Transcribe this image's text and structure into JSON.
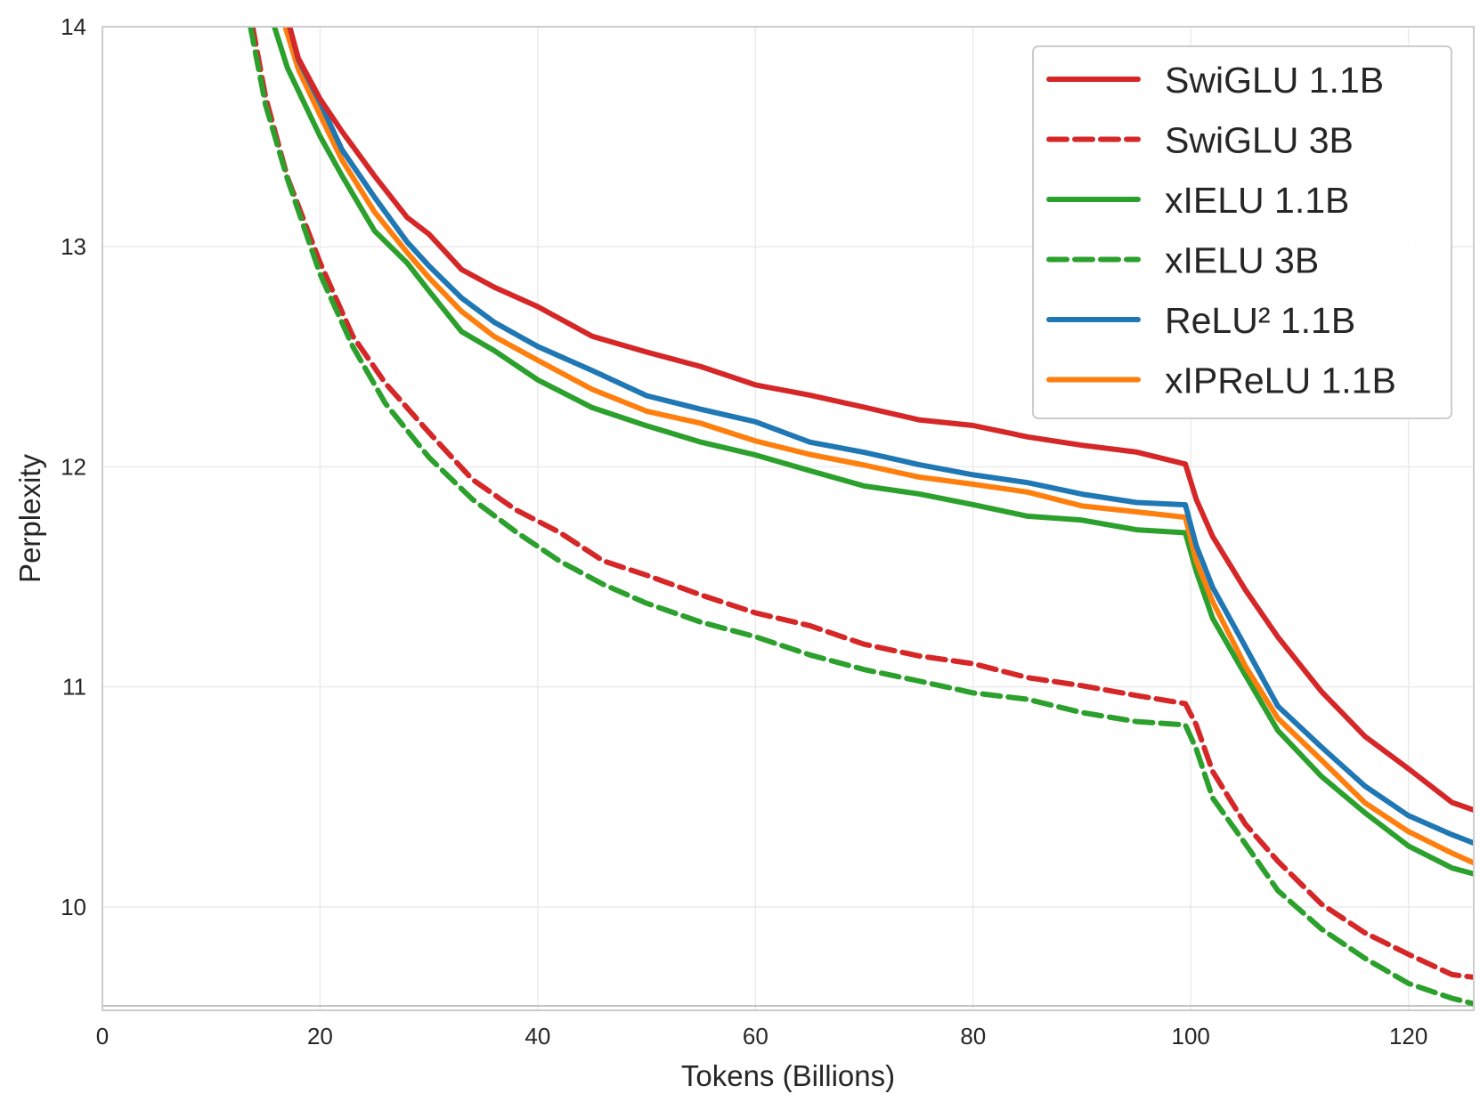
{
  "chart_data": {
    "type": "line",
    "title": "",
    "xlabel": "Tokens (Billions)",
    "ylabel": "Perplexity",
    "xlim": [
      0,
      126
    ],
    "ylim": [
      9.53,
      14
    ],
    "x_ticks": [
      0,
      20,
      40,
      60,
      80,
      100,
      120
    ],
    "y_ticks": [
      10,
      11,
      12,
      13,
      14
    ],
    "grid": true,
    "legend_position": "top-right",
    "baseline_hline": 9.55,
    "series": [
      {
        "name": "SwiGLU 1.1B",
        "color": "#d62728",
        "dash": "solid",
        "x": [
          17.2,
          18,
          20,
          22,
          25,
          28,
          30,
          33,
          36,
          40,
          45,
          50,
          55,
          60,
          65,
          70,
          75,
          80,
          85,
          90,
          95,
          99.5,
          100.5,
          102,
          105,
          108,
          112,
          116,
          120,
          124,
          126
        ],
        "y": [
          14,
          13.85,
          13.68,
          13.52,
          13.32,
          13.14,
          13.05,
          12.9,
          12.82,
          12.72,
          12.6,
          12.52,
          12.45,
          12.38,
          12.32,
          12.27,
          12.22,
          12.18,
          12.14,
          12.1,
          12.06,
          12.02,
          11.85,
          11.68,
          11.45,
          11.22,
          10.98,
          10.78,
          10.62,
          10.48,
          10.44
        ]
      },
      {
        "name": "SwiGLU 3B",
        "color": "#d62728",
        "dash": "dashed",
        "x": [
          13.8,
          15,
          17,
          20,
          23,
          26,
          30,
          34,
          38,
          42,
          46,
          50,
          55,
          60,
          65,
          70,
          75,
          80,
          85,
          90,
          95,
          99.5,
          100.5,
          102,
          105,
          108,
          112,
          116,
          120,
          124,
          126
        ],
        "y": [
          14,
          13.68,
          13.32,
          12.92,
          12.6,
          12.38,
          12.15,
          11.95,
          11.8,
          11.7,
          11.58,
          11.5,
          11.42,
          11.34,
          11.27,
          11.2,
          11.14,
          11.1,
          11.05,
          11.0,
          10.96,
          10.93,
          10.82,
          10.62,
          10.38,
          10.2,
          10.02,
          9.88,
          9.78,
          9.7,
          9.68
        ]
      },
      {
        "name": "xIELU 1.1B",
        "color": "#2ca02c",
        "dash": "solid",
        "x": [
          15.8,
          17,
          20,
          22,
          25,
          28,
          30,
          33,
          36,
          40,
          45,
          50,
          55,
          60,
          65,
          70,
          75,
          80,
          85,
          90,
          95,
          99.5,
          100.5,
          102,
          105,
          108,
          112,
          116,
          120,
          124,
          126
        ],
        "y": [
          14,
          13.82,
          13.5,
          13.32,
          13.08,
          12.92,
          12.8,
          12.62,
          12.52,
          12.4,
          12.27,
          12.18,
          12.12,
          12.05,
          11.98,
          11.92,
          11.87,
          11.83,
          11.78,
          11.75,
          11.72,
          11.7,
          11.52,
          11.32,
          11.05,
          10.8,
          10.6,
          10.42,
          10.28,
          10.18,
          10.15
        ]
      },
      {
        "name": "xIELU 3B",
        "color": "#2ca02c",
        "dash": "dashed",
        "x": [
          13.6,
          15,
          17,
          20,
          23,
          26,
          30,
          34,
          38,
          42,
          46,
          50,
          55,
          60,
          65,
          70,
          75,
          80,
          85,
          90,
          95,
          99.5,
          100.5,
          102,
          105,
          108,
          112,
          116,
          120,
          124,
          126
        ],
        "y": [
          14,
          13.65,
          13.3,
          12.88,
          12.55,
          12.28,
          12.05,
          11.85,
          11.7,
          11.58,
          11.46,
          11.38,
          11.3,
          11.22,
          11.15,
          11.08,
          11.02,
          10.98,
          10.94,
          10.88,
          10.85,
          10.82,
          10.72,
          10.5,
          10.28,
          10.08,
          9.9,
          9.76,
          9.66,
          9.58,
          9.56
        ]
      },
      {
        "name": "ReLU² 1.1B",
        "color": "#1f77b4",
        "dash": "solid",
        "x": [
          17.2,
          18,
          20,
          22,
          25,
          28,
          30,
          33,
          36,
          40,
          45,
          50,
          55,
          60,
          65,
          70,
          75,
          80,
          85,
          90,
          95,
          99.5,
          100.5,
          102,
          105,
          108,
          112,
          116,
          120,
          124,
          126
        ],
        "y": [
          14,
          13.85,
          13.65,
          13.45,
          13.22,
          13.02,
          12.92,
          12.76,
          12.66,
          12.55,
          12.43,
          12.33,
          12.26,
          12.2,
          12.12,
          12.06,
          12.01,
          11.97,
          11.92,
          11.88,
          11.84,
          11.82,
          11.65,
          11.45,
          11.18,
          10.92,
          10.72,
          10.55,
          10.42,
          10.32,
          10.29
        ]
      },
      {
        "name": "xIPReLU 1.1B",
        "color": "#ff7f0e",
        "dash": "solid",
        "x": [
          16.8,
          18,
          20,
          22,
          25,
          28,
          30,
          33,
          36,
          40,
          45,
          50,
          55,
          60,
          65,
          70,
          75,
          80,
          85,
          90,
          95,
          99.5,
          100.5,
          102,
          105,
          108,
          112,
          116,
          120,
          124,
          126
        ],
        "y": [
          14,
          13.8,
          13.6,
          13.4,
          13.15,
          12.98,
          12.86,
          12.7,
          12.6,
          12.48,
          12.35,
          12.26,
          12.19,
          12.12,
          12.06,
          12.0,
          11.96,
          11.92,
          11.88,
          11.83,
          11.79,
          11.77,
          11.58,
          11.38,
          11.1,
          10.86,
          10.66,
          10.48,
          10.34,
          10.24,
          10.2
        ]
      }
    ]
  }
}
